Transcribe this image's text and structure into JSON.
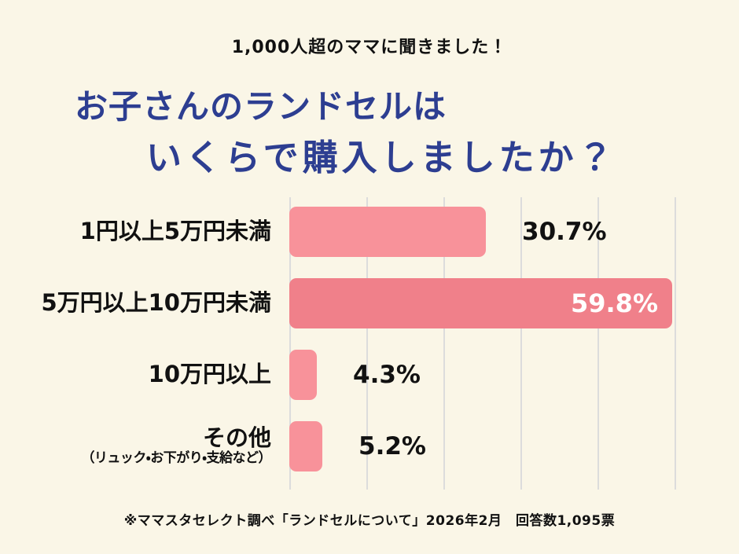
{
  "header": {
    "kicker": "1,000人超のママに聞きました！",
    "title_line1": "お子さんのランドセルは",
    "title_line2": "いくらで購入しましたか？"
  },
  "chart_data": {
    "type": "bar",
    "orientation": "horizontal",
    "title": "お子さんのランドセルはいくらで購入しましたか？",
    "categories": [
      "1円以上5万円未満",
      "5万円以上10万円未満",
      "10万円以上",
      "その他（リュック・お下がり・支給など）"
    ],
    "values": [
      30.7,
      59.8,
      4.3,
      5.2
    ],
    "xlim": [
      0,
      60.2
    ],
    "grid": true,
    "gridline_count": 6,
    "legend": "none",
    "rows": [
      {
        "label": "1円以上5万円未満",
        "sublabel": "",
        "value": 30.7,
        "value_label": "30.7%",
        "value_position": "outside",
        "color": "#F8929A"
      },
      {
        "label": "5万円以上10万円未満",
        "sublabel": "",
        "value": 59.8,
        "value_label": "59.8%",
        "value_position": "inside",
        "color": "#F0808A"
      },
      {
        "label": "10万円以上",
        "sublabel": "",
        "value": 4.3,
        "value_label": "4.3%",
        "value_position": "outside",
        "color": "#F8929A"
      },
      {
        "label": "その他",
        "sublabel": "（リュック・お下がり・支給など）",
        "value": 5.2,
        "value_label": "5.2%",
        "value_position": "outside",
        "color": "#F8929A"
      }
    ]
  },
  "footer": {
    "source": "※ママスタセレクト調べ「ランドセルについて」2026年2月　回答数1,095票"
  },
  "colors": {
    "background": "#FAF6E7",
    "title": "#2D3E91",
    "text": "#111111",
    "bar_light": "#F8929A",
    "bar_dark": "#F0808A",
    "grid": "#DCDCDC",
    "value_inside": "#FFFFFF"
  }
}
